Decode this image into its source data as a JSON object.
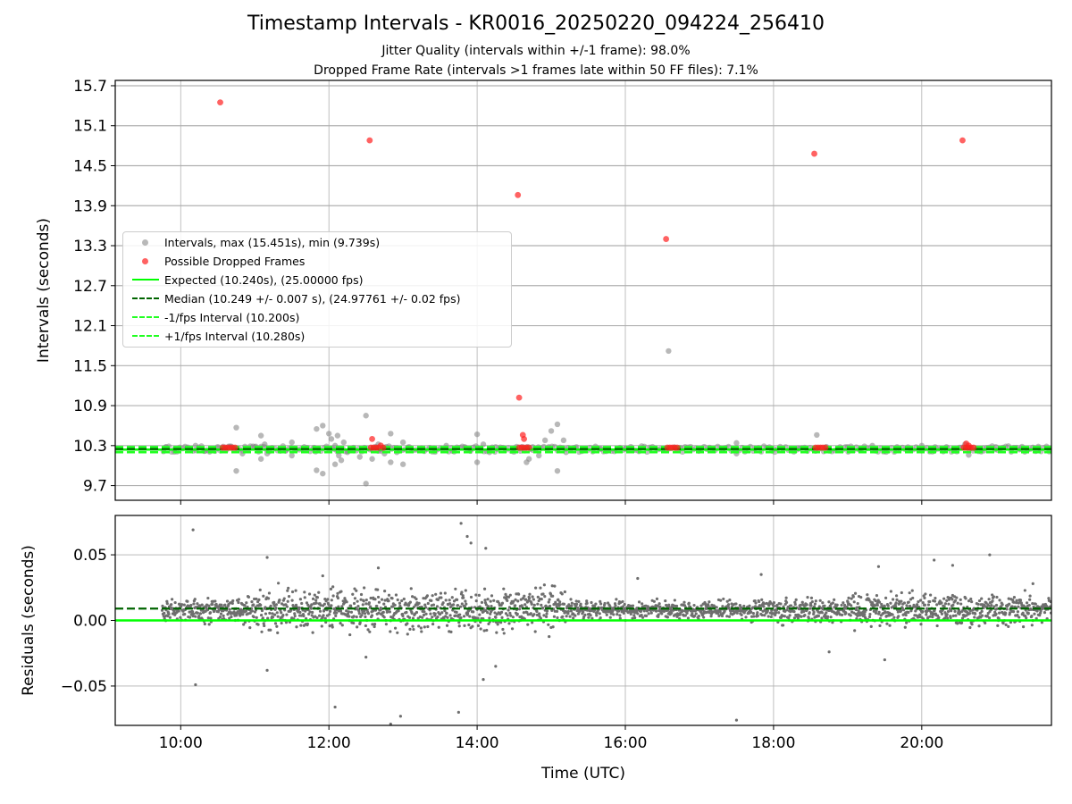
{
  "title": "Timestamp Intervals - KR0016_20250220_094224_256410",
  "subtitles": [
    "Jitter Quality (intervals within +/-1 frame): 98.0%",
    "Dropped Frame Rate (intervals >1 frames late within 50 FF files): 7.1%"
  ],
  "colors": {
    "intervals": "#888888",
    "dropped": "#ff2020",
    "expected": "#00ff00",
    "median": "#006400",
    "fps_band": "#22ff22",
    "residual_points": "#6e6e6e",
    "grid": "#b0b0b0"
  },
  "chart_data": [
    {
      "type": "scatter",
      "ylabel": "Intervals (seconds)",
      "xlim": [
        "09:07",
        "21:45"
      ],
      "ylim": [
        9.48,
        15.78
      ],
      "y_ticks": [
        "9.7",
        "10.3",
        "10.9",
        "11.5",
        "12.1",
        "12.7",
        "13.3",
        "13.9",
        "14.5",
        "15.1",
        "15.7"
      ],
      "grid": true,
      "legend_position": "center-left",
      "legend": [
        {
          "label": "Intervals, max (15.451s), min (9.739s)",
          "kind": "dot",
          "color": "#888888"
        },
        {
          "label": "Possible Dropped Frames",
          "kind": "dot",
          "color": "#ff2020"
        },
        {
          "label": "Expected (10.240s), (25.00000 fps)",
          "kind": "solid",
          "color": "#00ff00"
        },
        {
          "label": "Median (10.249 +/- 0.007 s), (24.97761 +/- 0.02 fps)",
          "kind": "dashed",
          "color": "#006400"
        },
        {
          "label": "-1/fps Interval (10.200s)",
          "kind": "dashed",
          "color": "#22ff22"
        },
        {
          "label": "+1/fps Interval (10.280s)",
          "kind": "dashed",
          "color": "#22ff22"
        }
      ],
      "reference_lines": {
        "expected": 10.24,
        "median": 10.249,
        "minus_1fps": 10.2,
        "plus_1fps": 10.28
      },
      "series": [
        {
          "name": "Intervals, max (15.451s), min (9.739s)",
          "points": [
            {
              "x": "09:48",
              "y": 10.28
            },
            {
              "x": "09:55",
              "y": 10.25
            },
            {
              "x": "10:05",
              "y": 10.26
            },
            {
              "x": "10:12",
              "y": 10.3
            },
            {
              "x": "10:20",
              "y": 10.22
            },
            {
              "x": "10:30",
              "y": 10.26
            },
            {
              "x": "10:40",
              "y": 10.29
            },
            {
              "x": "10:45",
              "y": 9.92
            },
            {
              "x": "10:50",
              "y": 10.18
            },
            {
              "x": "10:45",
              "y": 10.57
            },
            {
              "x": "11:00",
              "y": 10.28
            },
            {
              "x": "11:05",
              "y": 10.45
            },
            {
              "x": "11:05",
              "y": 10.1
            },
            {
              "x": "11:08",
              "y": 10.32
            },
            {
              "x": "11:10",
              "y": 10.18
            },
            {
              "x": "11:20",
              "y": 10.25
            },
            {
              "x": "11:25",
              "y": 10.22
            },
            {
              "x": "11:30",
              "y": 10.35
            },
            {
              "x": "11:30",
              "y": 10.15
            },
            {
              "x": "11:40",
              "y": 10.28
            },
            {
              "x": "11:48",
              "y": 10.27
            },
            {
              "x": "11:50",
              "y": 10.55
            },
            {
              "x": "11:50",
              "y": 9.93
            },
            {
              "x": "11:55",
              "y": 10.6
            },
            {
              "x": "11:55",
              "y": 9.88
            },
            {
              "x": "12:05",
              "y": 10.3
            },
            {
              "x": "12:10",
              "y": 10.25
            },
            {
              "x": "12:15",
              "y": 10.2
            },
            {
              "x": "12:00",
              "y": 10.48
            },
            {
              "x": "12:02",
              "y": 10.4
            },
            {
              "x": "12:05",
              "y": 10.02
            },
            {
              "x": "12:07",
              "y": 10.45
            },
            {
              "x": "12:08",
              "y": 10.15
            },
            {
              "x": "12:10",
              "y": 10.08
            },
            {
              "x": "12:12",
              "y": 10.35
            },
            {
              "x": "12:20",
              "y": 10.27
            },
            {
              "x": "12:25",
              "y": 10.13
            },
            {
              "x": "12:30",
              "y": 9.73
            },
            {
              "x": "12:30",
              "y": 10.75
            },
            {
              "x": "12:35",
              "y": 10.1
            },
            {
              "x": "12:40",
              "y": 10.32
            },
            {
              "x": "12:42",
              "y": 10.22
            },
            {
              "x": "12:45",
              "y": 10.18
            },
            {
              "x": "12:50",
              "y": 10.48
            },
            {
              "x": "12:50",
              "y": 10.05
            },
            {
              "x": "12:55",
              "y": 10.2
            },
            {
              "x": "13:00",
              "y": 10.35
            },
            {
              "x": "13:00",
              "y": 10.02
            },
            {
              "x": "13:05",
              "y": 10.28
            },
            {
              "x": "13:15",
              "y": 10.25
            },
            {
              "x": "13:25",
              "y": 10.26
            },
            {
              "x": "13:35",
              "y": 10.3
            },
            {
              "x": "13:40",
              "y": 10.22
            },
            {
              "x": "13:50",
              "y": 10.28
            },
            {
              "x": "13:55",
              "y": 10.24
            },
            {
              "x": "14:00",
              "y": 10.47
            },
            {
              "x": "14:00",
              "y": 10.05
            },
            {
              "x": "14:05",
              "y": 10.32
            },
            {
              "x": "14:10",
              "y": 10.2
            },
            {
              "x": "14:15",
              "y": 10.28
            },
            {
              "x": "14:30",
              "y": 10.26
            },
            {
              "x": "14:35",
              "y": 10.22
            },
            {
              "x": "14:40",
              "y": 10.05
            },
            {
              "x": "14:42",
              "y": 10.1
            },
            {
              "x": "14:45",
              "y": 10.28
            },
            {
              "x": "14:50",
              "y": 10.15
            },
            {
              "x": "14:55",
              "y": 10.38
            },
            {
              "x": "14:58",
              "y": 10.28
            },
            {
              "x": "15:00",
              "y": 10.52
            },
            {
              "x": "15:05",
              "y": 10.62
            },
            {
              "x": "15:05",
              "y": 9.92
            },
            {
              "x": "15:10",
              "y": 10.38
            },
            {
              "x": "15:12",
              "y": 10.2
            },
            {
              "x": "15:20",
              "y": 10.26
            },
            {
              "x": "15:40",
              "y": 10.25
            },
            {
              "x": "16:00",
              "y": 10.26
            },
            {
              "x": "16:20",
              "y": 10.25
            },
            {
              "x": "16:35",
              "y": 11.72
            },
            {
              "x": "16:45",
              "y": 10.26
            },
            {
              "x": "17:00",
              "y": 10.25
            },
            {
              "x": "17:20",
              "y": 10.26
            },
            {
              "x": "17:30",
              "y": 10.34
            },
            {
              "x": "17:30",
              "y": 10.18
            },
            {
              "x": "17:45",
              "y": 10.26
            },
            {
              "x": "18:00",
              "y": 10.25
            },
            {
              "x": "18:20",
              "y": 10.26
            },
            {
              "x": "18:35",
              "y": 10.46
            },
            {
              "x": "18:45",
              "y": 10.25
            },
            {
              "x": "19:00",
              "y": 10.28
            },
            {
              "x": "19:10",
              "y": 10.24
            },
            {
              "x": "19:20",
              "y": 10.3
            },
            {
              "x": "19:30",
              "y": 10.22
            },
            {
              "x": "19:40",
              "y": 10.28
            },
            {
              "x": "19:50",
              "y": 10.25
            },
            {
              "x": "20:00",
              "y": 10.3
            },
            {
              "x": "20:10",
              "y": 10.22
            },
            {
              "x": "20:20",
              "y": 10.28
            },
            {
              "x": "20:35",
              "y": 10.32
            },
            {
              "x": "20:38",
              "y": 10.16
            },
            {
              "x": "20:50",
              "y": 10.26
            },
            {
              "x": "21:00",
              "y": 10.28
            },
            {
              "x": "21:20",
              "y": 10.25
            },
            {
              "x": "21:35",
              "y": 10.26
            }
          ]
        },
        {
          "name": "Possible Dropped Frames",
          "points": [
            {
              "x": "10:32",
              "y": 15.45
            },
            {
              "x": "10:34",
              "y": 10.27
            },
            {
              "x": "10:36",
              "y": 10.27
            },
            {
              "x": "10:38",
              "y": 10.27
            },
            {
              "x": "10:40",
              "y": 10.27
            },
            {
              "x": "10:42",
              "y": 10.27
            },
            {
              "x": "10:44",
              "y": 10.27
            },
            {
              "x": "12:33",
              "y": 14.88
            },
            {
              "x": "12:34",
              "y": 10.27
            },
            {
              "x": "12:36",
              "y": 10.27
            },
            {
              "x": "12:38",
              "y": 10.27
            },
            {
              "x": "12:40",
              "y": 10.27
            },
            {
              "x": "12:42",
              "y": 10.3
            },
            {
              "x": "12:44",
              "y": 10.27
            },
            {
              "x": "12:35",
              "y": 10.4
            },
            {
              "x": "14:33",
              "y": 14.06
            },
            {
              "x": "14:34",
              "y": 10.27
            },
            {
              "x": "14:36",
              "y": 10.27
            },
            {
              "x": "14:38",
              "y": 10.27
            },
            {
              "x": "14:40",
              "y": 10.27
            },
            {
              "x": "14:42",
              "y": 10.27
            },
            {
              "x": "14:34",
              "y": 11.02
            },
            {
              "x": "14:37",
              "y": 10.46
            },
            {
              "x": "14:38",
              "y": 10.4
            },
            {
              "x": "16:33",
              "y": 13.4
            },
            {
              "x": "16:34",
              "y": 10.27
            },
            {
              "x": "16:36",
              "y": 10.27
            },
            {
              "x": "16:38",
              "y": 10.27
            },
            {
              "x": "16:40",
              "y": 10.27
            },
            {
              "x": "16:42",
              "y": 10.27
            },
            {
              "x": "18:33",
              "y": 14.68
            },
            {
              "x": "18:34",
              "y": 10.27
            },
            {
              "x": "18:36",
              "y": 10.27
            },
            {
              "x": "18:38",
              "y": 10.27
            },
            {
              "x": "18:40",
              "y": 10.27
            },
            {
              "x": "18:42",
              "y": 10.27
            },
            {
              "x": "20:33",
              "y": 14.88
            },
            {
              "x": "20:34",
              "y": 10.27
            },
            {
              "x": "20:36",
              "y": 10.27
            },
            {
              "x": "20:38",
              "y": 10.27
            },
            {
              "x": "20:40",
              "y": 10.27
            },
            {
              "x": "20:42",
              "y": 10.27
            },
            {
              "x": "20:36",
              "y": 10.33
            },
            {
              "x": "20:38",
              "y": 10.3
            }
          ]
        }
      ]
    },
    {
      "type": "scatter",
      "xlabel": "Time (UTC)",
      "ylabel": "Residuals (seconds)",
      "xlim": [
        "09:07",
        "21:45"
      ],
      "x_ticks": [
        "10:00",
        "12:00",
        "14:00",
        "16:00",
        "18:00",
        "20:00"
      ],
      "ylim": [
        -0.08,
        0.08
      ],
      "y_ticks": [
        "0.05",
        "0.00",
        "−0.05"
      ],
      "grid": true,
      "reference_lines": {
        "zero": 0.0,
        "median_offset": 0.009
      },
      "series": [
        {
          "name": "Residuals",
          "points": [
            {
              "x": "10:10",
              "y": 0.069
            },
            {
              "x": "10:12",
              "y": -0.049
            },
            {
              "x": "11:10",
              "y": 0.048
            },
            {
              "x": "11:10",
              "y": -0.038
            },
            {
              "x": "12:05",
              "y": -0.066
            },
            {
              "x": "12:40",
              "y": 0.04
            },
            {
              "x": "12:50",
              "y": -0.079
            },
            {
              "x": "12:58",
              "y": -0.073
            },
            {
              "x": "13:45",
              "y": -0.07
            },
            {
              "x": "13:47",
              "y": 0.074
            },
            {
              "x": "13:52",
              "y": 0.064
            },
            {
              "x": "13:55",
              "y": 0.059
            },
            {
              "x": "14:07",
              "y": 0.055
            },
            {
              "x": "17:30",
              "y": -0.076
            },
            {
              "x": "17:50",
              "y": 0.035
            },
            {
              "x": "19:25",
              "y": 0.041
            },
            {
              "x": "19:30",
              "y": -0.03
            },
            {
              "x": "20:10",
              "y": 0.046
            },
            {
              "x": "20:25",
              "y": 0.042
            },
            {
              "x": "20:55",
              "y": 0.05
            },
            {
              "x": "21:30",
              "y": 0.028
            },
            {
              "x": "14:05",
              "y": -0.045
            },
            {
              "x": "14:15",
              "y": -0.035
            },
            {
              "x": "12:30",
              "y": -0.028
            },
            {
              "x": "11:55",
              "y": 0.034
            },
            {
              "x": "16:10",
              "y": 0.032
            },
            {
              "x": "18:45",
              "y": -0.024
            }
          ]
        }
      ]
    }
  ]
}
